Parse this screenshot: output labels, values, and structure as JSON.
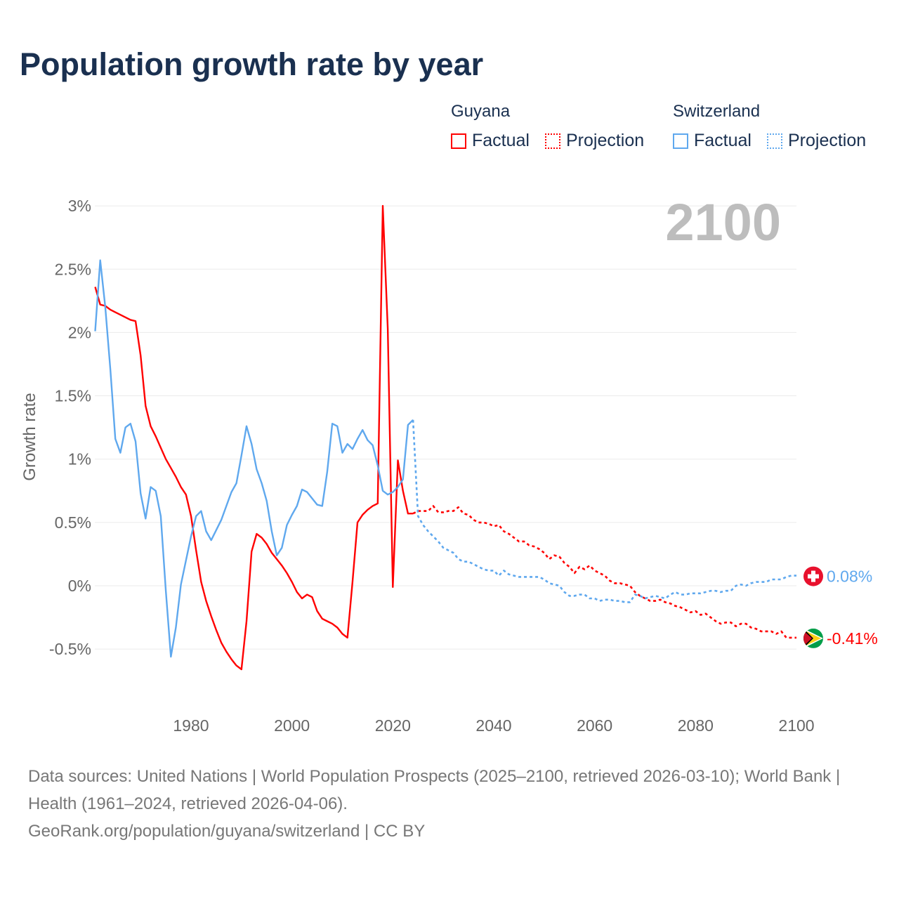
{
  "title": "Population growth rate by year",
  "legend": {
    "groups": [
      {
        "name": "Guyana",
        "factual": "Factual",
        "projection": "Projection",
        "color": "#ff0000"
      },
      {
        "name": "Switzerland",
        "factual": "Factual",
        "projection": "Projection",
        "color": "#5fa8ee"
      }
    ]
  },
  "chart_data": {
    "type": "line",
    "title": "Population growth rate by year",
    "xlabel": "",
    "ylabel": "Growth rate",
    "xlim": [
      1961,
      2100
    ],
    "ylim": [
      -0.75,
      3
    ],
    "x_ticks": [
      "1980",
      "2000",
      "2020",
      "2040",
      "2060",
      "2080",
      "2100"
    ],
    "y_ticks": [
      {
        "v": 3,
        "label": "3%"
      },
      {
        "v": 2.5,
        "label": "2.5%"
      },
      {
        "v": 2,
        "label": "2%"
      },
      {
        "v": 1.5,
        "label": "1.5%"
      },
      {
        "v": 1,
        "label": "1%"
      },
      {
        "v": 0.5,
        "label": "0.5%"
      },
      {
        "v": 0,
        "label": "0%"
      },
      {
        "v": -0.5,
        "label": "-0.5%"
      }
    ],
    "year_watermark": "2100",
    "grid": true,
    "series": [
      {
        "name": "Guyana Factual",
        "color": "#ff0000",
        "dashed": false,
        "start_year": 1961,
        "values": [
          2.36,
          2.22,
          2.21,
          2.18,
          2.16,
          2.14,
          2.12,
          2.1,
          2.09,
          1.82,
          1.42,
          1.26,
          1.18,
          1.09,
          1.0,
          0.93,
          0.86,
          0.78,
          0.72,
          0.55,
          0.28,
          0.03,
          -0.12,
          -0.24,
          -0.35,
          -0.45,
          -0.52,
          -0.58,
          -0.63,
          -0.66,
          -0.28,
          0.27,
          0.41,
          0.38,
          0.33,
          0.26,
          0.21,
          0.16,
          0.1,
          0.03,
          -0.05,
          -0.1,
          -0.07,
          -0.09,
          -0.2,
          -0.26,
          -0.28,
          -0.3,
          -0.33,
          -0.38,
          -0.41,
          0.03,
          0.5,
          0.56,
          0.6,
          0.63,
          0.65,
          3.0,
          2.03,
          -0.01,
          0.99,
          0.75,
          0.57,
          0.57
        ]
      },
      {
        "name": "Guyana Projection",
        "color": "#ff0000",
        "dashed": true,
        "start_year": 2024,
        "values": [
          0.57,
          0.59,
          0.59,
          0.59,
          0.63,
          0.58,
          0.58,
          0.59,
          0.59,
          0.62,
          0.57,
          0.56,
          0.52,
          0.5,
          0.5,
          0.49,
          0.47,
          0.48,
          0.43,
          0.41,
          0.38,
          0.35,
          0.35,
          0.32,
          0.31,
          0.29,
          0.26,
          0.21,
          0.24,
          0.23,
          0.18,
          0.15,
          0.1,
          0.15,
          0.13,
          0.16,
          0.12,
          0.1,
          0.08,
          0.04,
          0.02,
          0.02,
          0.01,
          0.0,
          -0.05,
          -0.08,
          -0.1,
          -0.12,
          -0.12,
          -0.11,
          -0.13,
          -0.14,
          -0.16,
          -0.17,
          -0.19,
          -0.21,
          -0.2,
          -0.23,
          -0.22,
          -0.25,
          -0.28,
          -0.3,
          -0.29,
          -0.29,
          -0.32,
          -0.3,
          -0.3,
          -0.33,
          -0.34,
          -0.36,
          -0.36,
          -0.36,
          -0.38,
          -0.36,
          -0.41,
          -0.41,
          -0.41
        ]
      },
      {
        "name": "Switzerland Factual",
        "color": "#5fa8ee",
        "dashed": false,
        "start_year": 1961,
        "values": [
          2.01,
          2.57,
          2.2,
          1.71,
          1.16,
          1.05,
          1.25,
          1.28,
          1.14,
          0.73,
          0.53,
          0.78,
          0.75,
          0.55,
          -0.04,
          -0.56,
          -0.33,
          0.01,
          0.2,
          0.39,
          0.55,
          0.59,
          0.43,
          0.36,
          0.44,
          0.52,
          0.63,
          0.74,
          0.81,
          1.03,
          1.26,
          1.12,
          0.92,
          0.81,
          0.67,
          0.43,
          0.24,
          0.3,
          0.48,
          0.56,
          0.63,
          0.76,
          0.74,
          0.69,
          0.64,
          0.63,
          0.9,
          1.28,
          1.26,
          1.05,
          1.12,
          1.08,
          1.16,
          1.23,
          1.15,
          1.11,
          0.95,
          0.75,
          0.72,
          0.74,
          0.78,
          0.84,
          1.27,
          1.31
        ]
      },
      {
        "name": "Switzerland Projection",
        "color": "#5fa8ee",
        "dashed": true,
        "start_year": 2024,
        "values": [
          1.31,
          0.55,
          0.48,
          0.43,
          0.39,
          0.35,
          0.3,
          0.28,
          0.26,
          0.21,
          0.19,
          0.19,
          0.17,
          0.15,
          0.13,
          0.12,
          0.12,
          0.08,
          0.12,
          0.09,
          0.08,
          0.07,
          0.07,
          0.07,
          0.07,
          0.07,
          0.05,
          0.02,
          0.01,
          0.0,
          -0.05,
          -0.08,
          -0.08,
          -0.07,
          -0.07,
          -0.1,
          -0.1,
          -0.12,
          -0.11,
          -0.11,
          -0.12,
          -0.12,
          -0.13,
          -0.13,
          -0.07,
          -0.08,
          -0.1,
          -0.09,
          -0.08,
          -0.09,
          -0.1,
          -0.07,
          -0.05,
          -0.07,
          -0.07,
          -0.06,
          -0.06,
          -0.06,
          -0.05,
          -0.04,
          -0.04,
          -0.05,
          -0.04,
          -0.04,
          0.0,
          0.01,
          0.0,
          0.02,
          0.03,
          0.03,
          0.03,
          0.05,
          0.05,
          0.05,
          0.07,
          0.08,
          0.08
        ]
      }
    ],
    "end_labels": [
      {
        "country": "Switzerland",
        "value": 0.08,
        "label": "0.08%",
        "color": "#5fa8ee"
      },
      {
        "country": "Guyana",
        "value": -0.41,
        "label": "-0.41%",
        "color": "#ff0000"
      }
    ]
  },
  "footer": {
    "sources": "Data sources: United Nations | World Population Prospects (2025–2100, retrieved 2026-03-10); World Bank | Health (1961–2024, retrieved 2026-04-06).",
    "credit": "GeoRank.org/population/guyana/switzerland | CC BY"
  }
}
